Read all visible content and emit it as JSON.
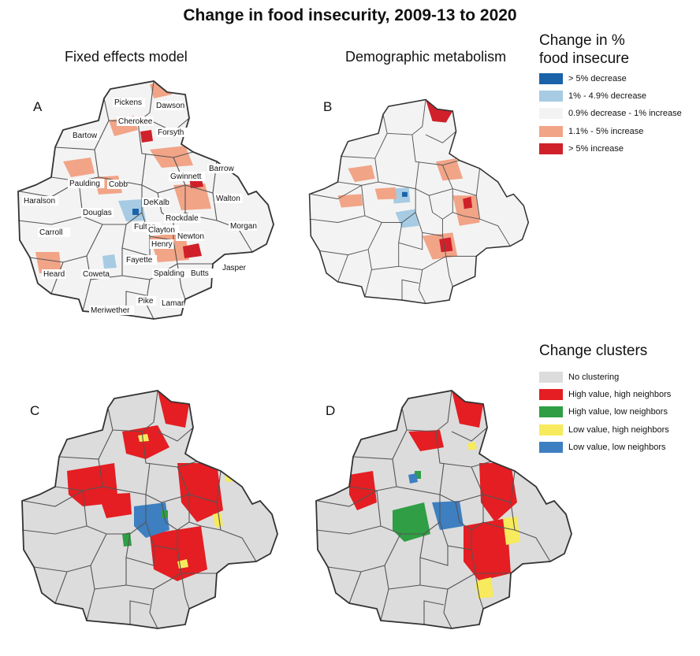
{
  "title": "Change in food insecurity, 2009-13 to 2020",
  "subtitles": {
    "a": "Fixed effects model",
    "b": "Demographic metabolism"
  },
  "panel_letters": [
    "A",
    "B",
    "C",
    "D"
  ],
  "legend_change": {
    "title_line1": "Change in %",
    "title_line2": "food insecure",
    "items": [
      {
        "label": "> 5% decrease",
        "color": "#1a63a8"
      },
      {
        "label": "1% - 4.9% decrease",
        "color": "#a6cbe3"
      },
      {
        "label": "0.9% decrease - 1% increase",
        "color": "#f3f3f3"
      },
      {
        "label": "1.1% - 5% increase",
        "color": "#f2a487"
      },
      {
        "label": "> 5% increase",
        "color": "#d0202a"
      }
    ]
  },
  "legend_clusters": {
    "title": "Change clusters",
    "items": [
      {
        "label": "No clustering",
        "color": "#dcdcdc"
      },
      {
        "label": "High value, high neighbors",
        "color": "#e41e22"
      },
      {
        "label": "High value, low neighbors",
        "color": "#2f9e44"
      },
      {
        "label": "Low value, high neighbors",
        "color": "#f7ea5c"
      },
      {
        "label": "Low value, low neighbors",
        "color": "#3d7fc1"
      }
    ]
  },
  "counties": [
    "Pickens",
    "Dawson",
    "Cherokee",
    "Forsyth",
    "Bartow",
    "Barrow",
    "Gwinnett",
    "Cobb",
    "Paulding",
    "Walton",
    "Haralson",
    "DeKalb",
    "Douglas",
    "Rockdale",
    "Carroll",
    "Fulton",
    "Clayton",
    "Newton",
    "Morgan",
    "Henry",
    "Fayette",
    "Heard",
    "Coweta",
    "Spalding",
    "Butts",
    "Jasper",
    "Pike",
    "Lamar",
    "Meriwether"
  ]
}
